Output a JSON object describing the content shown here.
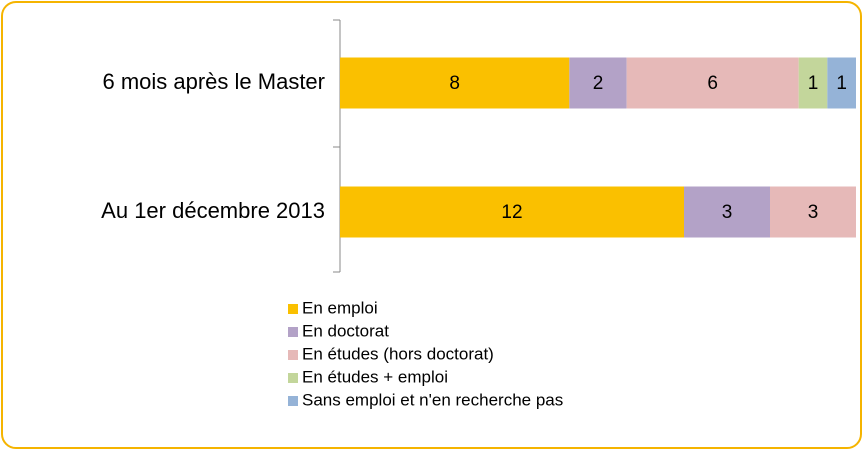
{
  "chart_data": {
    "type": "stacked-bar-horizontal",
    "categories": [
      "6 mois après le Master",
      "Au 1er décembre 2013"
    ],
    "series": [
      {
        "name": "En emploi",
        "color": "#fac000",
        "values": [
          8,
          12
        ]
      },
      {
        "name": "En doctorat",
        "color": "#b3a2c7",
        "values": [
          2,
          3
        ]
      },
      {
        "name": "En études (hors doctorat)",
        "color": "#e6b9b8",
        "values": [
          6,
          3
        ]
      },
      {
        "name": "En études + emploi",
        "color": "#c3d69b",
        "values": [
          1,
          0
        ]
      },
      {
        "name": "Sans emploi et n'en recherche pas",
        "color": "#95b3d7",
        "values": [
          1,
          0
        ]
      }
    ]
  }
}
